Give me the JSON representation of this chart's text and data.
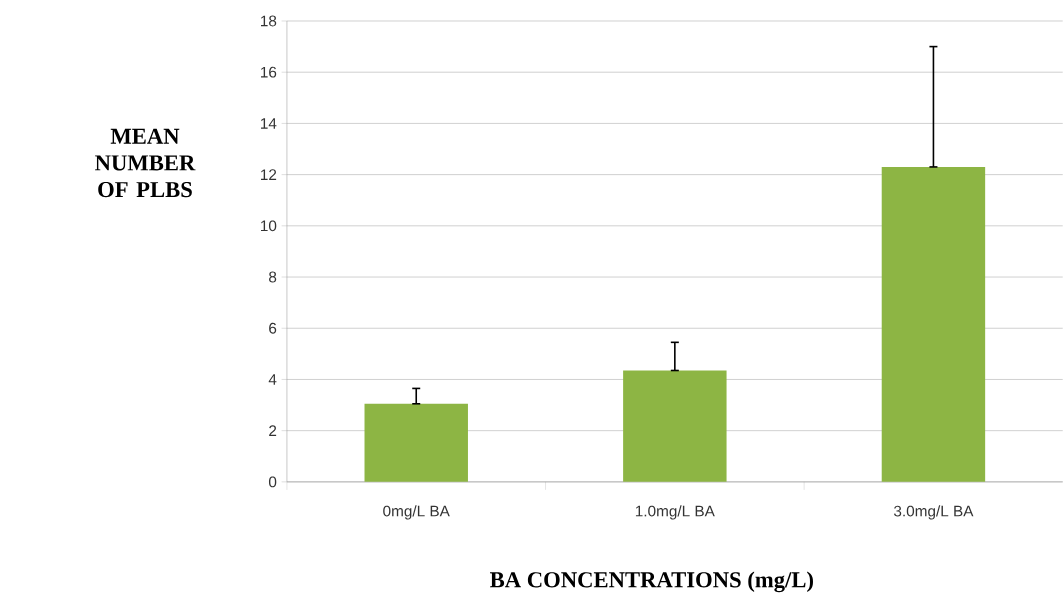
{
  "chart_data": {
    "type": "bar",
    "xlabel": "BA CONCENTRATIONS (mg/L)",
    "ylabel": "MEAN NUMBER OF PLBS",
    "categories": [
      "0mg/L BA",
      "1.0mg/L BA",
      "3.0mg/L BA"
    ],
    "values": [
      3.05,
      4.35,
      12.3
    ],
    "errors": [
      [
        3.05,
        3.65
      ],
      [
        4.35,
        5.45
      ],
      [
        12.3,
        17.0
      ]
    ],
    "color": "#8db544",
    "ylim": [
      0,
      18
    ],
    "yticks": [
      0,
      2,
      4,
      6,
      8,
      10,
      12,
      14,
      16,
      18
    ],
    "grid": "y"
  }
}
